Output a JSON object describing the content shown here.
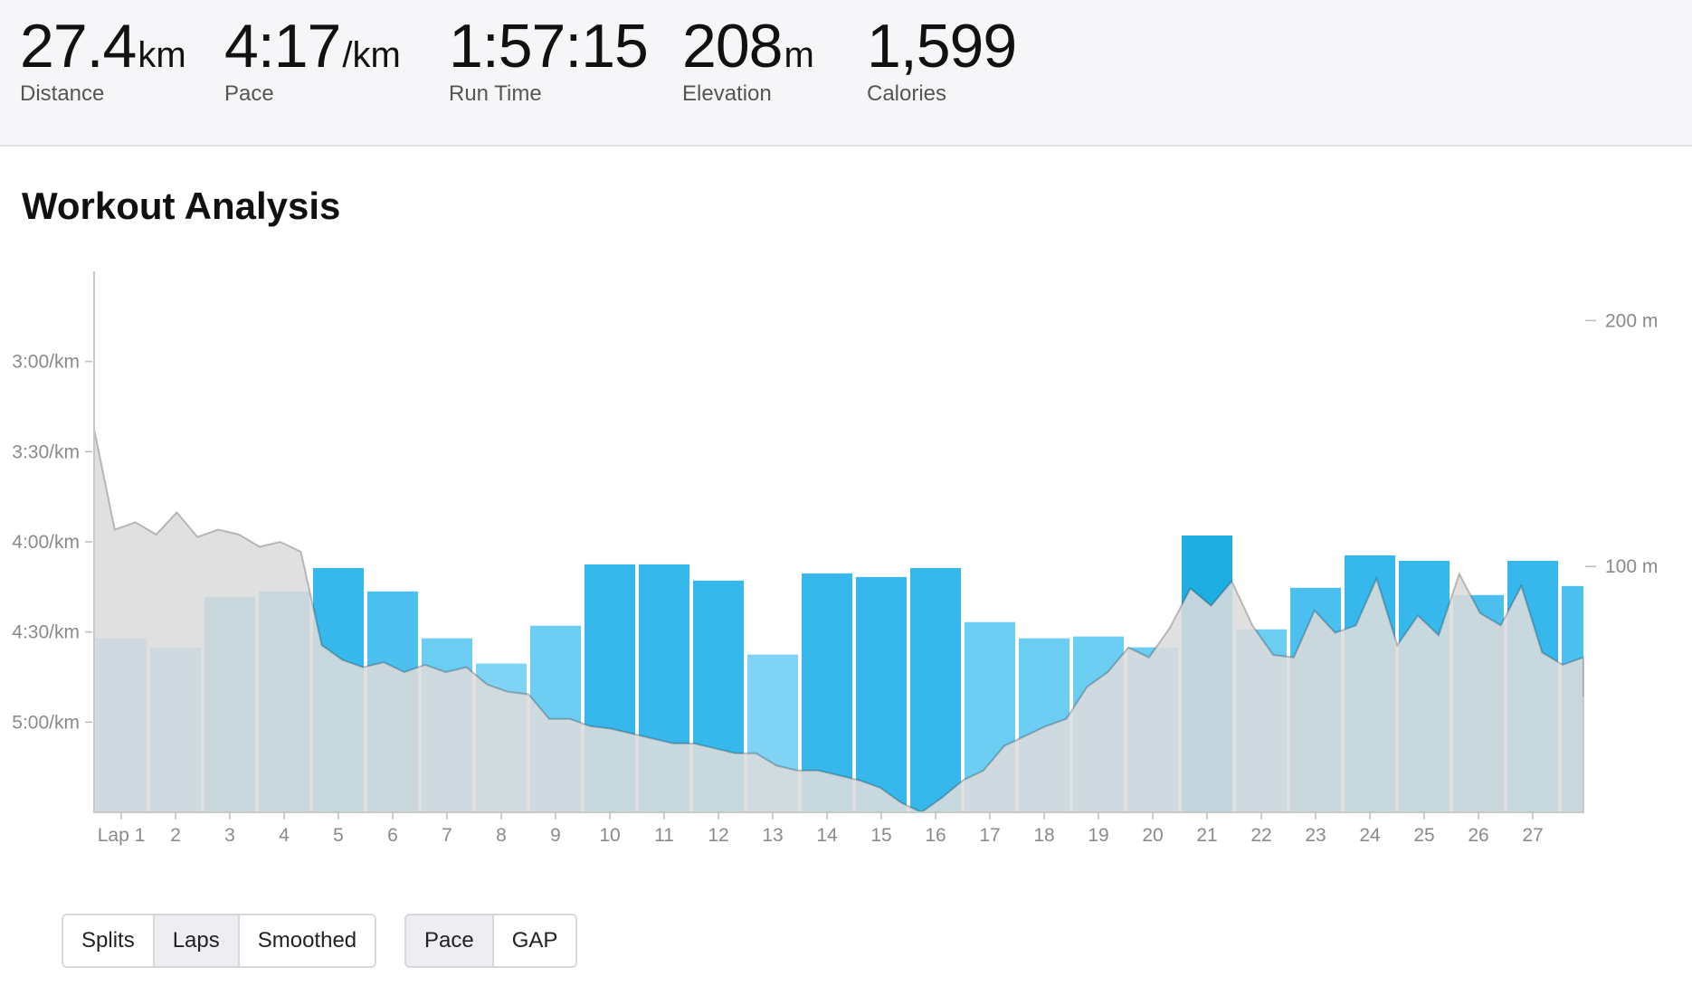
{
  "stats": [
    {
      "value": "27.4",
      "unit": "km",
      "label": "Distance"
    },
    {
      "value": "4:17",
      "unit": "/km",
      "label": "Pace"
    },
    {
      "value": "1:57:15",
      "unit": "",
      "label": "Run Time"
    },
    {
      "value": "208",
      "unit": "m",
      "label": "Elevation"
    },
    {
      "value": "1,599",
      "unit": "",
      "label": "Calories"
    }
  ],
  "section_title": "Workout Analysis",
  "chart_data": {
    "type": "bar",
    "categories": [
      "Lap 1",
      "2",
      "3",
      "4",
      "5",
      "6",
      "7",
      "8",
      "9",
      "10",
      "11",
      "12",
      "13",
      "14",
      "15",
      "16",
      "17",
      "18",
      "19",
      "20",
      "21",
      "22",
      "23",
      "24",
      "25",
      "26",
      "27",
      ""
    ],
    "series": [
      {
        "values": [
          4.53,
          4.58,
          4.3,
          4.27,
          4.14,
          4.27,
          4.53,
          4.67,
          4.46,
          4.12,
          4.12,
          4.21,
          4.62,
          4.17,
          4.19,
          4.14,
          4.44,
          4.53,
          4.52,
          4.58,
          3.96,
          4.48,
          4.25,
          4.07,
          4.1,
          4.29,
          4.1,
          4.24
        ]
      }
    ],
    "elevation": {
      "values": [
        156,
        115,
        118,
        113,
        122,
        112,
        115,
        113,
        108,
        110,
        106,
        68,
        62,
        59,
        61,
        57,
        60,
        57,
        59,
        52,
        49,
        48,
        38,
        38,
        35,
        34,
        32,
        30,
        28,
        28,
        26,
        24,
        24,
        19,
        17,
        17,
        15,
        13,
        10,
        4,
        0,
        6,
        13,
        17,
        27,
        31,
        35,
        38,
        51,
        57,
        67,
        63,
        75,
        91,
        84,
        94,
        76,
        64,
        63,
        82,
        73,
        76,
        95,
        68,
        80,
        72,
        97,
        81,
        76,
        92,
        65,
        60,
        63
      ],
      "ylim": [
        0,
        220
      ]
    },
    "y_ticks": [
      "3:00/km",
      "3:30/km",
      "4:00/km",
      "4:30/km",
      "5:00/km"
    ],
    "y_tick_values": [
      3.0,
      3.5,
      4.0,
      4.5,
      5.0
    ],
    "y2_ticks": [
      "200 m",
      "100 m"
    ],
    "y2_tick_values": [
      200,
      100
    ],
    "ylim": [
      2.5,
      5.5
    ],
    "colors": [
      "#7fd3f5",
      "#6ccdf2",
      "#4bbfee",
      "#36b8ec",
      "#1eaee2"
    ],
    "elevation_color": "#dcdcdc",
    "grid": false
  },
  "buttons": {
    "view": [
      {
        "label": "Splits",
        "active": false
      },
      {
        "label": "Laps",
        "active": true
      },
      {
        "label": "Smoothed",
        "active": false
      }
    ],
    "metric": [
      {
        "label": "Pace",
        "active": true
      },
      {
        "label": "GAP",
        "active": false
      }
    ]
  }
}
